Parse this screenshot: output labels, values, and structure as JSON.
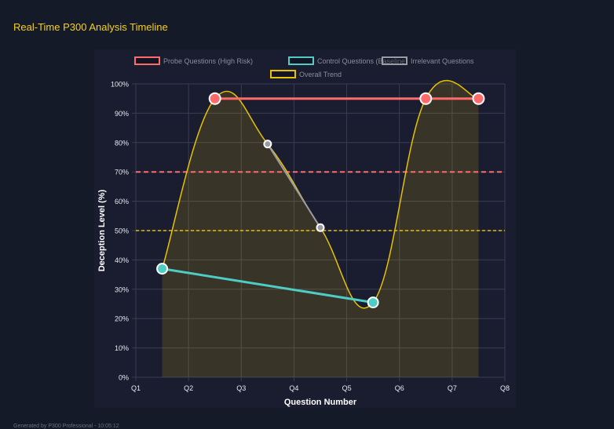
{
  "header": {
    "title": "Real-Time P300 Analysis Timeline"
  },
  "footer": {
    "text": "Generated by P300 Professional - 10:05:12"
  },
  "chart_data": {
    "type": "line",
    "xlabel": "Question Number",
    "ylabel": "Deception Level (%)",
    "x_tick_labels": [
      "Q1",
      "Q2",
      "Q3",
      "Q4",
      "Q5",
      "Q6",
      "Q7",
      "Q8"
    ],
    "y_ticks": [
      "0%",
      "10%",
      "20%",
      "30%",
      "40%",
      "50%",
      "60%",
      "70%",
      "80%",
      "90%",
      "100%"
    ],
    "ylim": [
      0,
      100
    ],
    "grid": true,
    "legend_placement": "top",
    "points_x": [
      1,
      2,
      3,
      4,
      5,
      6,
      7
    ],
    "series": [
      {
        "name": "Probe Questions (High Risk)",
        "color": "#ff6b6b",
        "values": [
          null,
          95,
          null,
          null,
          null,
          95,
          95
        ]
      },
      {
        "name": "Control Questions (Baseline)",
        "color": "#4ecdc4",
        "values": [
          37,
          null,
          null,
          null,
          25.5,
          null,
          null
        ]
      },
      {
        "name": "Irrelevant Questions",
        "color": "#9a9aa5",
        "values": [
          null,
          null,
          79.5,
          51,
          null,
          null,
          null
        ]
      },
      {
        "name": "Overall Trend",
        "color": "#e6c200",
        "values": [
          37,
          95,
          79.5,
          51,
          25.5,
          95,
          95
        ],
        "filled": true,
        "smooth": true
      }
    ],
    "thresholds": [
      {
        "value": 70,
        "color": "#ff6b6b"
      },
      {
        "value": 50,
        "color": "#e6c200"
      }
    ]
  }
}
